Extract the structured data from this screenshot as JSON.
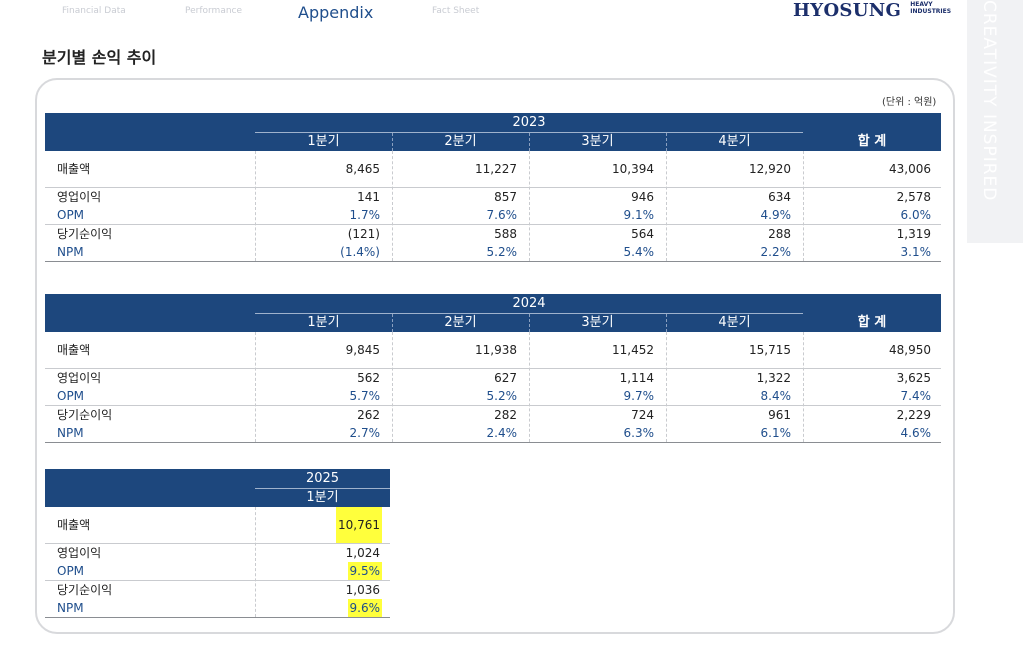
{
  "nav": {
    "tabs": [
      "Financial Data",
      "Performance",
      "Appendix",
      "Fact Sheet"
    ],
    "active_index": 2
  },
  "logo": {
    "main": "HYOSUNG",
    "sub_line1": "HEAVY",
    "sub_line2": "INDUSTRIES"
  },
  "side_banner": "CREATIVITY INSPIRED",
  "page_title": "분기별 손익 추이",
  "unit_label": "(단위 : 억원)",
  "row_labels": {
    "revenue": "매출액",
    "op_income": "영업이익",
    "opm": "OPM",
    "net_income": "당기순이익",
    "npm": "NPM"
  },
  "quarter_labels": [
    "1분기",
    "2분기",
    "3분기",
    "4분기"
  ],
  "total_label": "합 계",
  "table_2023": {
    "year": "2023",
    "revenue": [
      "8,465",
      "11,227",
      "10,394",
      "12,920",
      "43,006"
    ],
    "op_income": [
      "141",
      "857",
      "946",
      "634",
      "2,578"
    ],
    "opm": [
      "1.7%",
      "7.6%",
      "9.1%",
      "4.9%",
      "6.0%"
    ],
    "net_income": [
      "(121)",
      "588",
      "564",
      "288",
      "1,319"
    ],
    "npm": [
      "(1.4%)",
      "5.2%",
      "5.4%",
      "2.2%",
      "3.1%"
    ]
  },
  "table_2024": {
    "year": "2024",
    "revenue": [
      "9,845",
      "11,938",
      "11,452",
      "15,715",
      "48,950"
    ],
    "op_income": [
      "562",
      "627",
      "1,114",
      "1,322",
      "3,625"
    ],
    "opm": [
      "5.7%",
      "5.2%",
      "9.7%",
      "8.4%",
      "7.4%"
    ],
    "net_income": [
      "262",
      "282",
      "724",
      "961",
      "2,229"
    ],
    "npm": [
      "2.7%",
      "2.4%",
      "6.3%",
      "6.1%",
      "4.6%"
    ]
  },
  "table_2025": {
    "year": "2025",
    "quarter": "1분기",
    "revenue": "10,761",
    "op_income": "1,024",
    "opm": "9.5%",
    "net_income": "1,036",
    "npm": "9.6%",
    "highlight_color": "#ffff3c"
  },
  "colors": {
    "header_bg": "#1d477d",
    "accent_blue": "#1f4e8c"
  }
}
